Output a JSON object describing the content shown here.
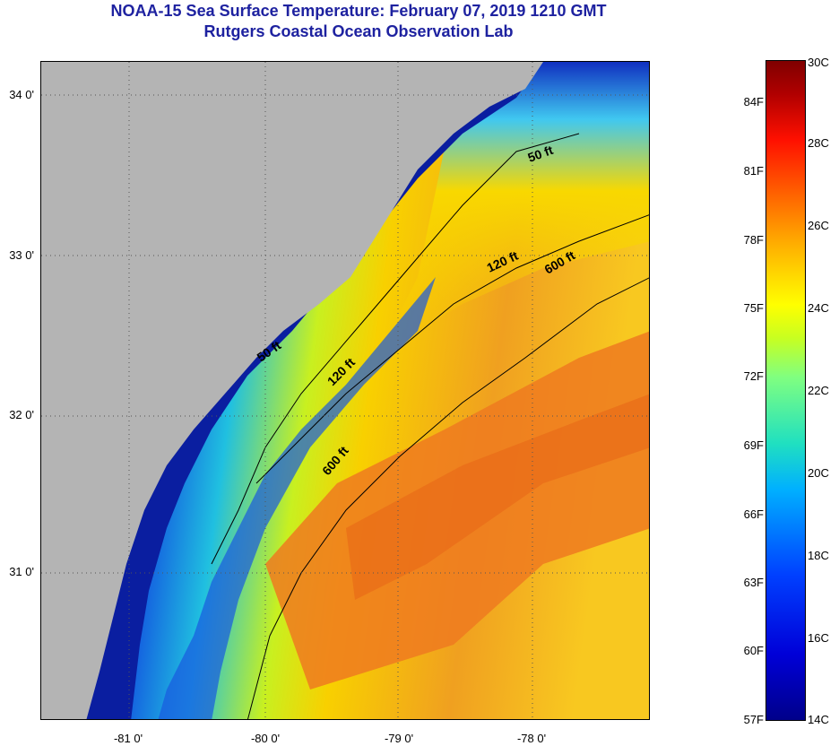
{
  "title": {
    "line1": "NOAA-15 Sea Surface Temperature:  February 07, 2019 1210 GMT",
    "line2": "Rutgers Coastal Ocean Observation Lab"
  },
  "axes": {
    "lat_labels": [
      "34 0'",
      "33 0'",
      "32 0'",
      "31 0'"
    ],
    "lon_labels": [
      "-81 0'",
      "-80 0'",
      "-79 0'",
      "-78 0'"
    ]
  },
  "isobaths": [
    {
      "label": "50 ft"
    },
    {
      "label": "50 ft"
    },
    {
      "label": "120 ft"
    },
    {
      "label": "120 ft"
    },
    {
      "label": "600 ft"
    },
    {
      "label": "600 ft"
    }
  ],
  "colorbar": {
    "fahrenheit": [
      "84F",
      "81F",
      "78F",
      "75F",
      "72F",
      "69F",
      "66F",
      "63F",
      "60F",
      "57F"
    ],
    "celsius": [
      "30C",
      "28C",
      "26C",
      "24C",
      "22C",
      "20C",
      "18C",
      "16C",
      "14C"
    ]
  },
  "colors": {
    "land": "#b4b4b4",
    "cold": "#0a1ea0",
    "warm": "#f08a20",
    "title": "#1e22a0"
  }
}
